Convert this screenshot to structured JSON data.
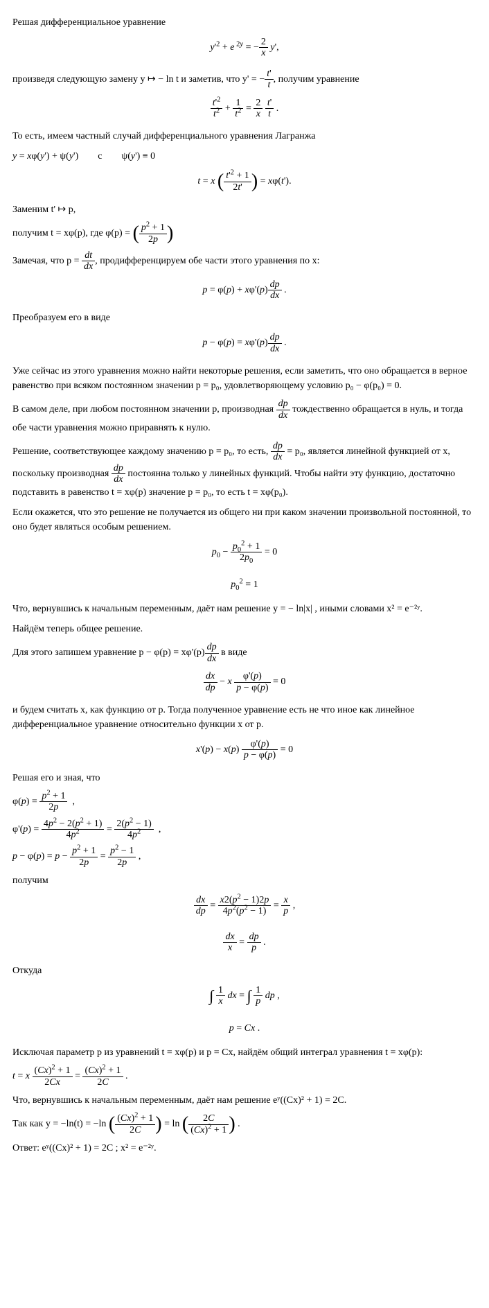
{
  "p01": "Решая дифференциальное уравнение",
  "eq01": "y'² + e²ʸ = −(2/x) y',",
  "p02a": "произведя следующую замену y ↦ − ln t и заметив, что y' = −",
  "p02b": ", получим уравнение",
  "eq02_lhs": "t'²/t² + 1/t² = (2/x)(t'/t).",
  "p03": "То есть, имеем частный случай дифференциального уравнения Лагранжа",
  "p03b": "y = xφ(y') + ψ(y')        с        ψ(y') ≡ 0",
  "eq03": "t = x ( (t'² + 1) / (2t') ) = xφ(t').",
  "p04": "Заменим t' ↦ p,",
  "p05a": "получим t = xφ(p), где φ(p) = ",
  "p06a": "Замечая, что p = ",
  "p06b": ", продифференцируем обе части этого уравнения по x:",
  "eq04": "p = φ(p) + xφ'(p) dp/dx.",
  "p07": "Преобразуем его в виде",
  "eq05": "p − φ(p) = xφ'(p) dp/dx.",
  "p08": "Уже сейчас из этого уравнения можно найти некоторые решения, если заметить, что оно обращается в верное равенство при всяком постоянном значении p = p₀, удовлетворяющему условию p₀ − φ(p₀) = 0.",
  "p09a": "В самом деле, при любом постоянном значении p, производная ",
  "p09b": " тождественно обращается в нуль, и тогда обе части уравнения можно приравнять к нулю.",
  "p10a": "Решение, соответствующее каждому значению p = p₀, то есть, ",
  "p10b": " = p₀, является линейной функцией от x, поскольку производная ",
  "p10c": " постоянна только у линейных функций. Чтобы найти эту функцию, достаточно подставить в равенство t = xφ(p) значение p = p₀, то есть t = xφ(p₀).",
  "p11": "Если окажется, что это решение не получается из общего ни при каком значении произвольной постоянной, то оно будет являться особым решением.",
  "eq06a": "p₀ − (p₀² + 1)/(2p₀) = 0",
  "eq06b": "p₀² = 1",
  "p12": "Что, вернувшись к начальным переменным, даёт нам решение    y = − ln|x|   , иными словами    x² = e⁻²ʸ.",
  "p13": "Найдём теперь общее решение.",
  "p14a": "Для этого запишем уравнение p − φ(p) = xφ'(p)",
  "p14b": " в виде",
  "eq07": "dx/dp − x φ'(p)/(p − φ(p)) = 0",
  "p15": "и будем считать x, как функцию от p. Тогда полученное уравнение есть не что иное как линейное дифференциальное уравнение относительно функции x от p.",
  "eq08": "x'(p) − x(p) φ'(p)/(p − φ(p)) = 0",
  "p16": "Решая его и зная, что",
  "eq09a": "φ(p) = (p² + 1)/(2p)  ,",
  "eq09b": "φ'(p) = (4p² − 2(p² + 1))/(4p²) = 2(p² − 1)/(4p²)  ,",
  "eq09c": "p − φ(p) = p − (p² + 1)/(2p) = (p² − 1)/(2p) ,",
  "p17": "получим",
  "eq10a": "dx/dp = x·2(p² − 1)·2p / (4p²(p² − 1)) = x/p ,",
  "eq10b": "dx/x = dp/p .",
  "p18": "Откуда",
  "eq11a": "∫ (1/x) dx = ∫ (1/p) dp ,",
  "eq11b": "p = Cx .",
  "p19": "Исключая параметр p из уравнений t = xφ(p) и p = Cx, найдём общий интеграл уравнения t = xφ(p):",
  "eq12": "t = x ((Cx)² + 1)/(2Cx) = ((Cx)² + 1)/(2C) .",
  "p20": "Что, вернувшись к начальным переменным, даёт нам решение eʸ((Cx)² + 1) = 2C.",
  "p21a": "Так как y = −ln(t) = −ln",
  "p21b": " = ln",
  "p21c": " .",
  "answer": "Ответ: eʸ((Cx)² + 1) = 2C ; x² = e⁻²ʸ."
}
